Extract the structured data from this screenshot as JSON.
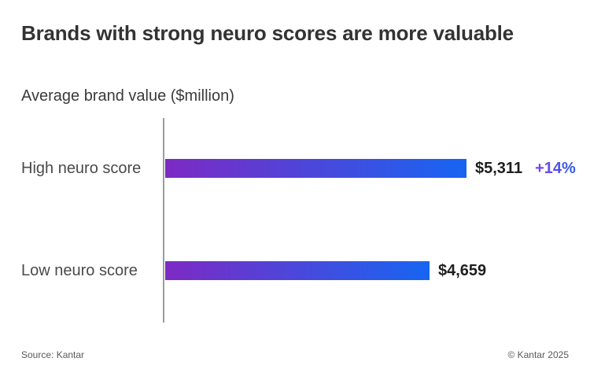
{
  "header": {
    "title": "Brands with strong neuro scores are more valuable",
    "subtitle": "Average brand value ($million)"
  },
  "footer": {
    "source": "Source: Kantar",
    "copyright": "© Kantar 2025"
  },
  "colors": {
    "bar_gradient_start": "#7D2AC4",
    "bar_gradient_end": "#1765F2",
    "annotation_gradient_start": "#7B45E8",
    "annotation_gradient_end": "#2F5BF0",
    "title_text": "#333333",
    "subtitle_text": "#3A3A3A",
    "category_label_text": "#4A4A4A",
    "value_text": "#1E1E1E",
    "axis_line": "#9B9B9B",
    "footer_text": "#595959",
    "background": "#FFFFFF"
  },
  "chart_data": {
    "type": "bar",
    "orientation": "horizontal",
    "title": "Brands with strong neuro scores are more valuable",
    "axis_label": "Average brand value ($million)",
    "categories": [
      "High neuro score",
      "Low neuro score"
    ],
    "values": [
      5311,
      4659
    ],
    "value_labels": [
      "$5,311",
      "$4,659"
    ],
    "annotations": [
      "+14%",
      ""
    ],
    "xlim": [
      0,
      5311
    ],
    "grid": false,
    "legend": false,
    "source": "Source: Kantar",
    "copyright": "© Kantar 2025"
  }
}
